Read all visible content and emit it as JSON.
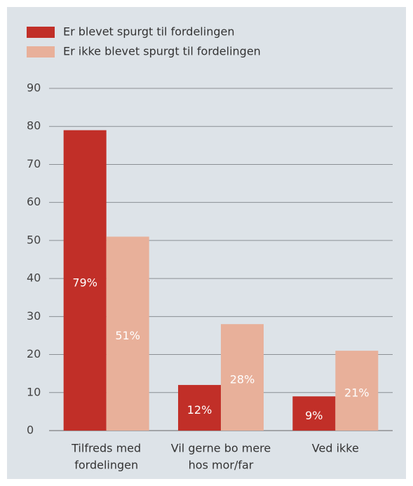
{
  "chart_data": {
    "type": "bar",
    "categories": [
      [
        "Tilfreds med",
        "fordelingen"
      ],
      [
        "Vil gerne bo mere",
        "hos mor/far"
      ],
      [
        "Ved ikke"
      ]
    ],
    "series": [
      {
        "name": "Er blevet spurgt til fordelingen",
        "color": "#c12f28",
        "values": [
          79,
          12,
          9
        ],
        "value_labels": [
          "79%",
          "12%",
          "9%"
        ]
      },
      {
        "name": "Er ikke blevet spurgt til fordelingen",
        "color": "#e8b09a",
        "values": [
          51,
          28,
          21
        ],
        "value_labels": [
          "51%",
          "28%",
          "21%"
        ]
      }
    ],
    "ylim": [
      0,
      90
    ],
    "yticks": [
      0,
      10,
      20,
      30,
      40,
      50,
      60,
      70,
      80,
      90
    ],
    "grid": true,
    "legend": "top-left"
  }
}
